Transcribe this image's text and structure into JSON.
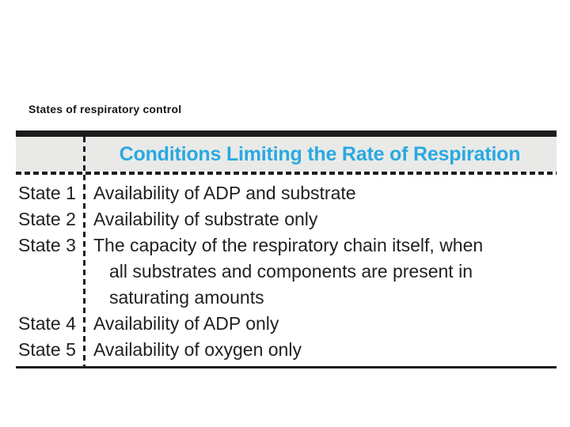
{
  "page": {
    "title": "States of respiratory control"
  },
  "table": {
    "header_title": "Conditions Limiting the Rate of Respiration",
    "rows": [
      {
        "state": "State 1",
        "condition": "Availability of ADP and substrate",
        "lines": [
          "Availability of ADP and substrate"
        ]
      },
      {
        "state": "State 2",
        "condition": "Availability of substrate only",
        "lines": [
          "Availability of substrate only"
        ]
      },
      {
        "state": "State 3",
        "condition": "The capacity of the respiratory chain itself, when all substrates and components are present in saturating amounts",
        "lines": [
          "The capacity of the respiratory chain itself, when",
          "all substrates and components are present in",
          "saturating amounts"
        ]
      },
      {
        "state": "State 4",
        "condition": "Availability of ADP only",
        "lines": [
          "Availability of ADP only"
        ]
      },
      {
        "state": "State 5",
        "condition": "Availability of oxygen only",
        "lines": [
          "Availability of oxygen only"
        ]
      }
    ],
    "colors": {
      "accent_cyan": "#29a9e1",
      "header_bg": "#e9eae8",
      "body_text": "#231f20",
      "border_black": "#1c1c1c"
    }
  }
}
